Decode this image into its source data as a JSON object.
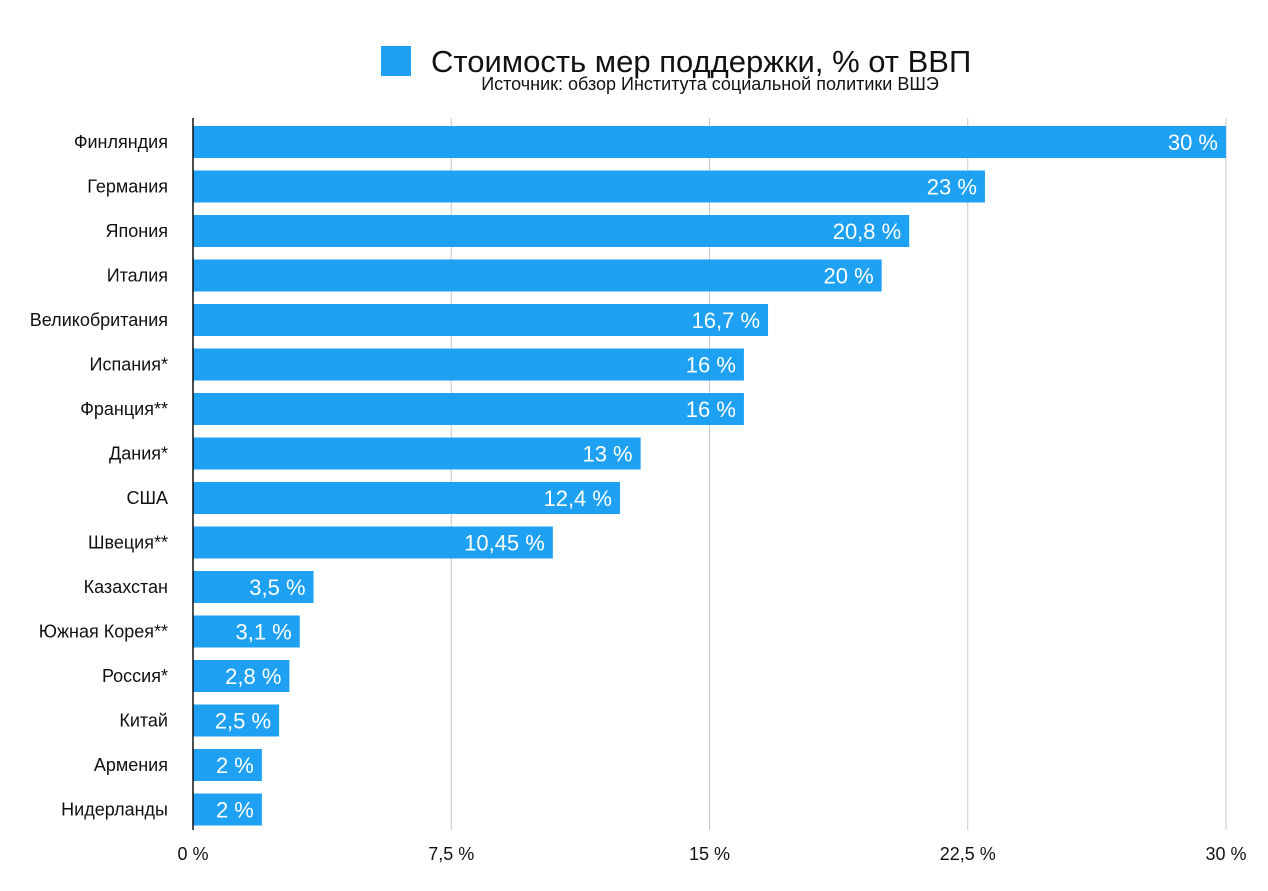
{
  "chart_data": {
    "type": "bar",
    "orientation": "horizontal",
    "title": "Стоимость мер поддержки, % от ВВП",
    "subtitle": "Источник: обзор Института социальной политики ВШЭ",
    "legend": {
      "position": "top",
      "entries": [
        "Стоимость мер поддержки, % от ВВП"
      ]
    },
    "categories": [
      "Финляндия",
      "Германия",
      "Япония",
      "Италия",
      "Великобритания",
      "Испания*",
      "Франция**",
      "Дания*",
      "США",
      "Швеция**",
      "Казахстан",
      "Южная Корея**",
      "Россия*",
      "Китай",
      "Армения",
      "Нидерланды"
    ],
    "values": [
      30,
      23,
      20.8,
      20,
      16.7,
      16,
      16,
      13,
      12.4,
      10.45,
      3.5,
      3.1,
      2.8,
      2.5,
      2,
      2
    ],
    "data_labels": [
      "30 %",
      "23 %",
      "20,8 %",
      "20 %",
      "16,7 %",
      "16 %",
      "16 %",
      "13 %",
      "12,4 %",
      "10,45 %",
      "3,5 %",
      "3,1 %",
      "2,8 %",
      "2,5 %",
      "2 %",
      "2 %"
    ],
    "xlim": [
      0,
      30
    ],
    "x_ticks": [
      0,
      7.5,
      15,
      22.5,
      30
    ],
    "x_tick_labels": [
      "0 %",
      "7,5 %",
      "15 %",
      "22,5 %",
      "30 %"
    ],
    "grid": true,
    "colors": {
      "bar": "#1ea1f2",
      "grid": "#c8c8c8",
      "axis": "#111111",
      "label_inside": "#ffffff",
      "text": "#111111"
    }
  }
}
